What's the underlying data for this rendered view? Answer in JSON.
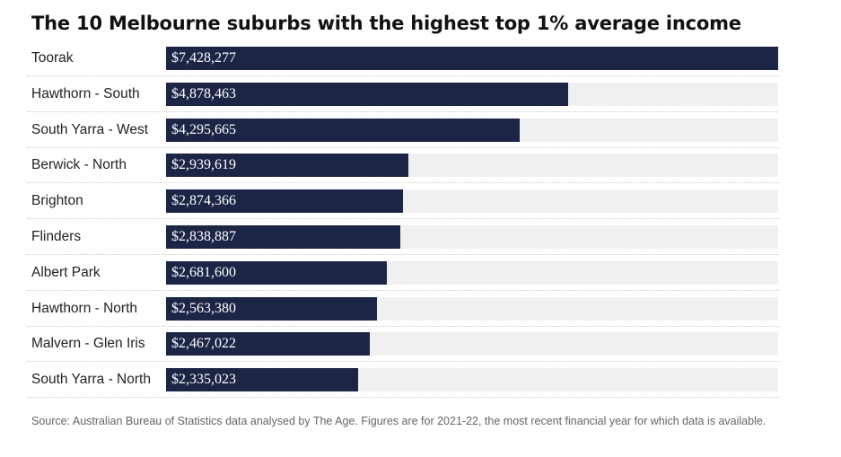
{
  "title": "The 10 Melbourne suburbs with the highest top 1% average income",
  "source": "Source: Australian Bureau of Statistics data analysed by The Age. Figures are for 2021-22, the most recent financial year for which data is available.",
  "colors": {
    "bar": "#1c2546",
    "track": "#f0f0f0",
    "value_text": "#ffffff"
  },
  "chart_data": {
    "type": "bar",
    "orientation": "horizontal",
    "title": "The 10 Melbourne suburbs with the highest top 1% average income",
    "categories": [
      "Toorak",
      "Hawthorn - South",
      "South Yarra - West",
      "Berwick - North",
      "Brighton",
      "Flinders",
      "Albert Park",
      "Hawthorn - North",
      "Malvern - Glen Iris",
      "South Yarra - North"
    ],
    "values": [
      7428277,
      4878463,
      4295665,
      2939619,
      2874366,
      2838887,
      2681600,
      2563380,
      2467022,
      2335023
    ],
    "value_labels": [
      "$7,428,277",
      "$4,878,463",
      "$4,295,665",
      "$2,939,619",
      "$2,874,366",
      "$2,838,887",
      "$2,681,600",
      "$2,563,380",
      "$2,467,022",
      "$2,335,023"
    ],
    "xlim": [
      0,
      7428277
    ],
    "grid": false,
    "legend": "none"
  }
}
